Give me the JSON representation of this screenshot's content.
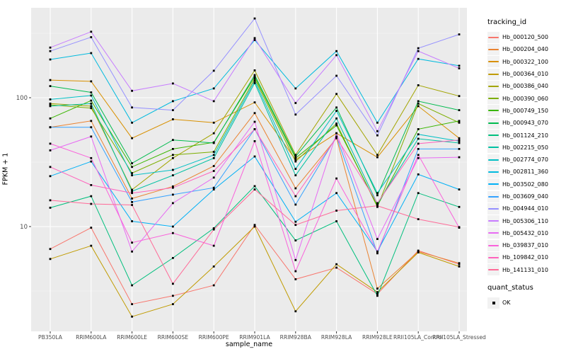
{
  "figure": {
    "y_axis_title": "FPKM + 1",
    "x_axis_title": "sample_name",
    "legend": {
      "title": "tracking_id",
      "quant": {
        "title": "quant_status",
        "items": [
          {
            "label": "OK",
            "marker": "black-square-point"
          }
        ]
      }
    },
    "colors": {
      "panel_bg": "#EBEBEB",
      "grid_major": "#FFFFFF",
      "grid_minor": "#FFFFFF",
      "tick_mark": "#333333",
      "tick_text": "#4D4D4D",
      "axis_title_text": "#000000",
      "point": "#000000",
      "legend_key_bg": "#F2F2F2"
    }
  },
  "chart_data": {
    "type": "line",
    "title": "",
    "xlabel": "sample_name",
    "ylabel": "FPKM + 1",
    "scale_y": "log10",
    "y_tick_values": [
      10,
      100
    ],
    "y_minor_gridlines": [
      3.162,
      31.62,
      316.2
    ],
    "ylim": [
      1.5,
      500
    ],
    "grid": true,
    "legend_position": "right",
    "point_marker": "filled-black-square",
    "categories": [
      "PB350LA",
      "RRIM600LA",
      "RRIM600LE",
      "RRIM600SE",
      "RRIM600PE",
      "RRIM901LA",
      "RRIM928BA",
      "RRIM928LA",
      "RRIM928LE",
      "RRII105LA_Control",
      "RRII105LA_Stressed"
    ],
    "series": [
      {
        "name": "Hb_000120_500",
        "color": "#F8766D",
        "values": [
          6.7,
          9.8,
          2.5,
          2.9,
          3.5,
          10.3,
          3.9,
          4.8,
          3.0,
          6.5,
          5.1
        ]
      },
      {
        "name": "Hb_000204_040",
        "color": "#EA8331",
        "values": [
          59,
          66,
          16.5,
          20.5,
          29.5,
          76,
          19.8,
          48.5,
          3.3,
          6.4,
          5.2
        ]
      },
      {
        "name": "Hb_000322_100",
        "color": "#D89000",
        "values": [
          137,
          134,
          48.5,
          68,
          64,
          92,
          33,
          53,
          34.5,
          86,
          48.5
        ]
      },
      {
        "name": "Hb_000364_010",
        "color": "#C09B00",
        "values": [
          5.6,
          7.1,
          2.0,
          2.5,
          4.9,
          10,
          2.2,
          5.1,
          3.1,
          6.3,
          4.9
        ]
      },
      {
        "name": "Hb_000386_040",
        "color": "#A3A500",
        "values": [
          90,
          86,
          19.3,
          34,
          53,
          163,
          36,
          107,
          36,
          125,
          103
        ]
      },
      {
        "name": "Hb_000390_060",
        "color": "#7CAE00",
        "values": [
          88,
          83,
          26,
          36,
          38,
          140,
          32,
          63,
          14.2,
          90,
          64
        ]
      },
      {
        "name": "Hb_000749_150",
        "color": "#39B600",
        "values": [
          69,
          95,
          29,
          40,
          45,
          145,
          34,
          61,
          14.5,
          57,
          66
        ]
      },
      {
        "name": "Hb_000943_070",
        "color": "#00BB4E",
        "values": [
          123,
          110,
          31,
          47,
          44.5,
          150,
          35,
          84,
          17.5,
          94,
          80
        ]
      },
      {
        "name": "Hb_001124_210",
        "color": "#00BF7D",
        "values": [
          14,
          17.2,
          3.5,
          5.7,
          9.7,
          20.6,
          7.8,
          11,
          2.9,
          18.2,
          14.2
        ]
      },
      {
        "name": "Hb_002215_050",
        "color": "#00C1A3",
        "values": [
          86,
          90,
          18.8,
          25,
          34,
          130,
          25,
          69,
          15,
          48,
          44.5
        ]
      },
      {
        "name": "Hb_002774_070",
        "color": "#00BFC4",
        "values": [
          97,
          104,
          25,
          27.5,
          36,
          135,
          28,
          79,
          18.2,
          52,
          46
        ]
      },
      {
        "name": "Hb_002811_360",
        "color": "#00BADE",
        "values": [
          198,
          222,
          64,
          94,
          118,
          280,
          118,
          230,
          64,
          200,
          177
        ]
      },
      {
        "name": "Hb_003502_080",
        "color": "#00B0F6",
        "values": [
          24.6,
          32,
          11,
          10,
          19.4,
          35,
          10.9,
          18.2,
          6.4,
          25.4,
          19.4
        ]
      },
      {
        "name": "Hb_003609_040",
        "color": "#35A2FF",
        "values": [
          59,
          59,
          15.5,
          17.7,
          20,
          57,
          14.8,
          50,
          6.2,
          40,
          40
        ]
      },
      {
        "name": "Hb_004944_010",
        "color": "#9590FF",
        "values": [
          230,
          295,
          84,
          80,
          162,
          412,
          74,
          148,
          51,
          242,
          310
        ]
      },
      {
        "name": "Hb_005306_110",
        "color": "#C77CFF",
        "values": [
          245,
          325,
          113,
          129,
          94,
          290,
          91,
          214,
          55,
          230,
          169
        ]
      },
      {
        "name": "Hb_005432_010",
        "color": "#E76BF3",
        "values": [
          39,
          50,
          6.4,
          15.2,
          24,
          65,
          5.5,
          53,
          8.0,
          34,
          34.5
        ]
      },
      {
        "name": "Hb_039837_010",
        "color": "#FA62DB",
        "values": [
          44,
          34,
          7.5,
          8.9,
          7.1,
          46,
          4.5,
          23.6,
          6.4,
          36,
          9.8
        ]
      },
      {
        "name": "Hb_109842_010",
        "color": "#FF62BC",
        "values": [
          29,
          21,
          18.2,
          20,
          27,
          57,
          17.2,
          49,
          15.2,
          44,
          47
        ]
      },
      {
        "name": "Hb_141131_010",
        "color": "#FF6A98",
        "values": [
          16,
          15,
          14.7,
          3.6,
          9.5,
          19.4,
          10.3,
          13.3,
          14.5,
          11.4,
          9.9
        ]
      }
    ]
  }
}
